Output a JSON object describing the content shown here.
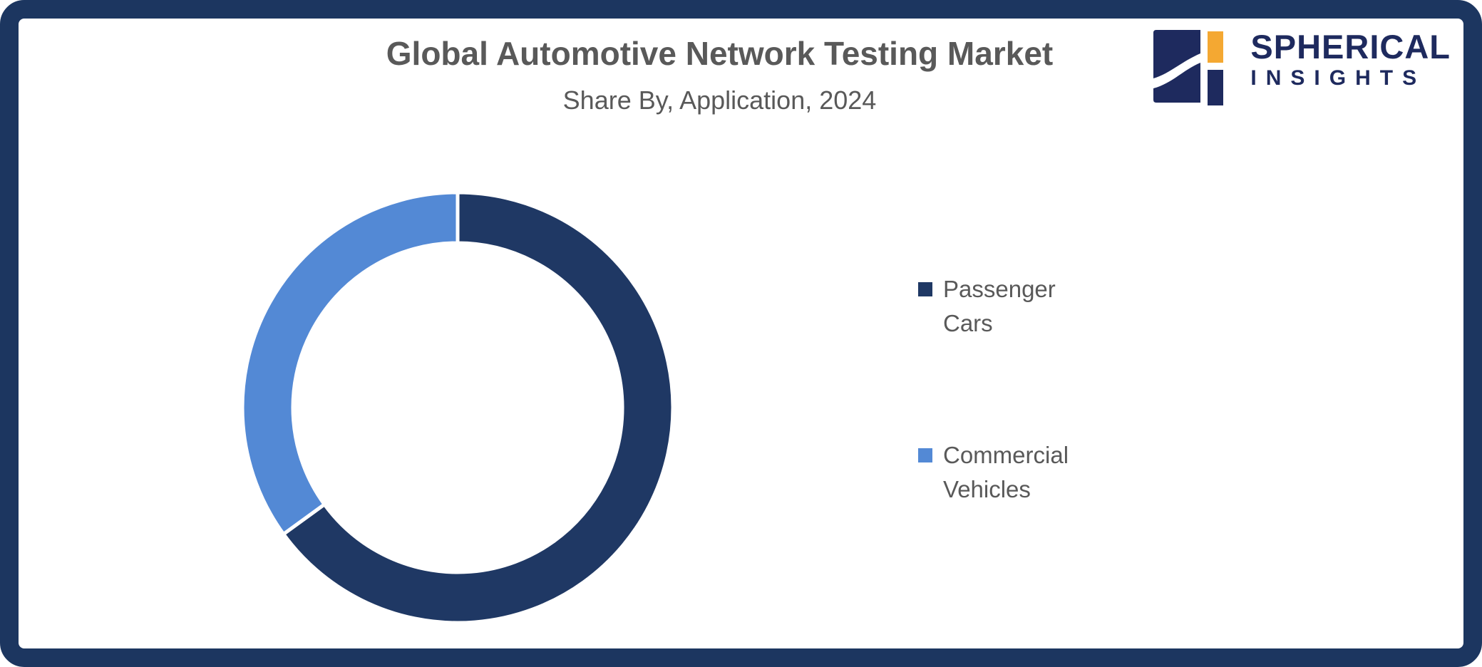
{
  "header": {
    "title": "Global Automotive Network Testing Market",
    "subtitle": "Share By, Application, 2024"
  },
  "logo": {
    "word": "SPHERICAL",
    "sub": "INSIGHTS",
    "navy": "#1E2A5E",
    "orange": "#F4A832"
  },
  "frame_color": "#1C3660",
  "chart_data": {
    "type": "pie",
    "subtype": "donut",
    "title": "Global Automotive Network Testing Market",
    "subtitle": "Share By, Application, 2024",
    "categories": [
      "Passenger Cars",
      "Commercial Vehicles"
    ],
    "values": [
      65,
      35
    ],
    "unit": "percent",
    "colors": [
      "#1F3864",
      "#5389D5"
    ],
    "start_angle_deg": 0,
    "direction": "clockwise",
    "donut_hole_ratio": 0.765,
    "divider_color": "#FFFFFF",
    "legend_position": "right",
    "data_labels_shown": false
  },
  "legend": {
    "items": [
      {
        "label": "Passenger Cars",
        "color": "#1F3864"
      },
      {
        "label": "Commercial Vehicles",
        "color": "#5389D5"
      }
    ]
  }
}
